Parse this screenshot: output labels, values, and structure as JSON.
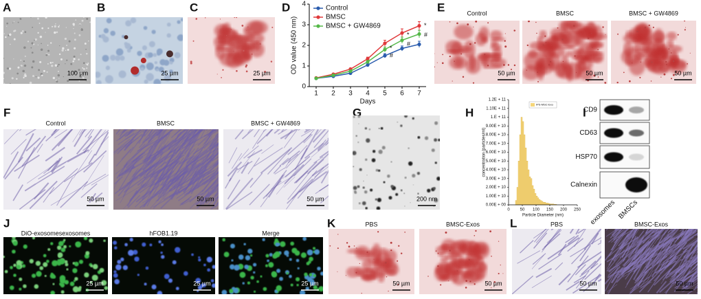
{
  "panels": {
    "A": {
      "label": "A",
      "scale_bar": "100 µm"
    },
    "B": {
      "label": "B",
      "scale_bar": "25 µm"
    },
    "C": {
      "label": "C",
      "scale_bar": "25 µm"
    },
    "D": {
      "label": "D"
    },
    "E": {
      "label": "E",
      "captions": [
        "Control",
        "BMSC",
        "BMSC + GW4869"
      ],
      "scale_bar": "50 µm"
    },
    "F": {
      "label": "F",
      "captions": [
        "Control",
        "BMSC",
        "BMSC + GW4869"
      ],
      "scale_bar": "50 µm"
    },
    "G": {
      "label": "G",
      "scale_bar": "200 nm"
    },
    "H": {
      "label": "H"
    },
    "I": {
      "label": "I",
      "proteins": [
        "CD9",
        "CD63",
        "HSP70",
        "Calnexin"
      ],
      "samples": [
        "exosomes",
        "BMSCs"
      ]
    },
    "J": {
      "label": "J",
      "captions": [
        "DiO-exosomesexosomes",
        "hFOB1.19",
        "Merge"
      ],
      "scale_bar": "25 µm"
    },
    "K": {
      "label": "K",
      "captions": [
        "PBS",
        "BMSC-Exos"
      ],
      "scale_bar": "50 µm"
    },
    "L": {
      "label": "L",
      "captions": [
        "PBS",
        "BMSC-Exos"
      ],
      "scale_bar": "50 µm"
    }
  },
  "chart_data": [
    {
      "type": "line",
      "x_label": "Days",
      "y_label": "OD value (450 nm)",
      "x": [
        1,
        2,
        3,
        4,
        5,
        6,
        7
      ],
      "xlim": [
        0.6,
        7.4
      ],
      "xticks": [
        1,
        2,
        3,
        4,
        5,
        6,
        7
      ],
      "ylim": [
        0,
        4
      ],
      "yticks": [
        0,
        1,
        2,
        3,
        4
      ],
      "series": [
        {
          "name": "Control",
          "color": "#2a5cae",
          "values": [
            0.4,
            0.5,
            0.65,
            1.05,
            1.5,
            1.85,
            2.05
          ],
          "errors": [
            0.02,
            0.03,
            0.04,
            0.06,
            0.1,
            0.12,
            0.15
          ]
        },
        {
          "name": "BMSC",
          "color": "#e0393b",
          "values": [
            0.42,
            0.6,
            0.85,
            1.35,
            2.1,
            2.6,
            2.95
          ],
          "errors": [
            0.03,
            0.04,
            0.05,
            0.08,
            0.15,
            0.2,
            0.2
          ]
        },
        {
          "name": "BMSC + GW4869",
          "color": "#55b848",
          "values": [
            0.4,
            0.55,
            0.75,
            1.2,
            1.8,
            2.25,
            2.55
          ],
          "errors": [
            0.03,
            0.04,
            0.05,
            0.07,
            0.12,
            0.15,
            0.18
          ]
        }
      ],
      "annotations": [
        {
          "text": "*",
          "x": 5,
          "y": 1.85
        },
        {
          "text": "#",
          "x": 5,
          "y": 1.5
        },
        {
          "text": "*",
          "x": 6,
          "y": 2.5
        },
        {
          "text": "#",
          "x": 6,
          "y": 2.05
        },
        {
          "text": "*",
          "x": 7,
          "y": 2.95
        },
        {
          "text": "#",
          "x": 7,
          "y": 2.5
        }
      ]
    },
    {
      "type": "histogram",
      "x_label": "Particle Diameter (nm)",
      "y_label": "concentration (particles/ml)",
      "legend": "IPS-MSC-Exo",
      "color": "#f5d67a",
      "bins": [
        25,
        30,
        35,
        40,
        45,
        50,
        55,
        60,
        65,
        70,
        75,
        80,
        85,
        90,
        95,
        100,
        105,
        110,
        115,
        120,
        125,
        130,
        135,
        140,
        145,
        150,
        155,
        160,
        165,
        170,
        175
      ],
      "values": [
        5000000000,
        20000000000,
        50000000000,
        80000000000,
        100000000000,
        95000000000,
        80000000000,
        65000000000,
        50000000000,
        40000000000,
        32000000000,
        30000000000,
        22000000000,
        18000000000,
        13000000000,
        10000000000,
        8000000000,
        6000000000,
        5000000000,
        4000000000,
        3000000000,
        3000000000,
        2000000000,
        2000000000,
        1500000000,
        1000000000,
        1000000000,
        1000000000,
        500000000,
        500000000
      ],
      "xlim": [
        0,
        250
      ],
      "xticks": [
        0,
        50,
        100,
        150,
        200,
        250
      ],
      "ylim": [
        0,
        120000000000
      ],
      "yticks": [
        {
          "value": 0,
          "label": "0.00E + 00"
        },
        {
          "value": 10000000000,
          "label": "1.00E + 10"
        },
        {
          "value": 20000000000,
          "label": "2.00E + 10"
        },
        {
          "value": 30000000000,
          "label": "3.00E + 10"
        },
        {
          "value": 40000000000,
          "label": "4.00E + 10"
        },
        {
          "value": 50000000000,
          "label": "5.00E + 10"
        },
        {
          "value": 60000000000,
          "label": "6.00E + 10"
        },
        {
          "value": 70000000000,
          "label": "7.00E + 10"
        },
        {
          "value": 80000000000,
          "label": "8.00E + 10"
        },
        {
          "value": 90000000000,
          "label": "9.00E + 10"
        },
        {
          "value": 100000000000,
          "label": "1.E + 11"
        },
        {
          "value": 110000000000,
          "label": "1.10E + 11"
        },
        {
          "value": 120000000000,
          "label": "1.2E + 11"
        }
      ]
    }
  ]
}
